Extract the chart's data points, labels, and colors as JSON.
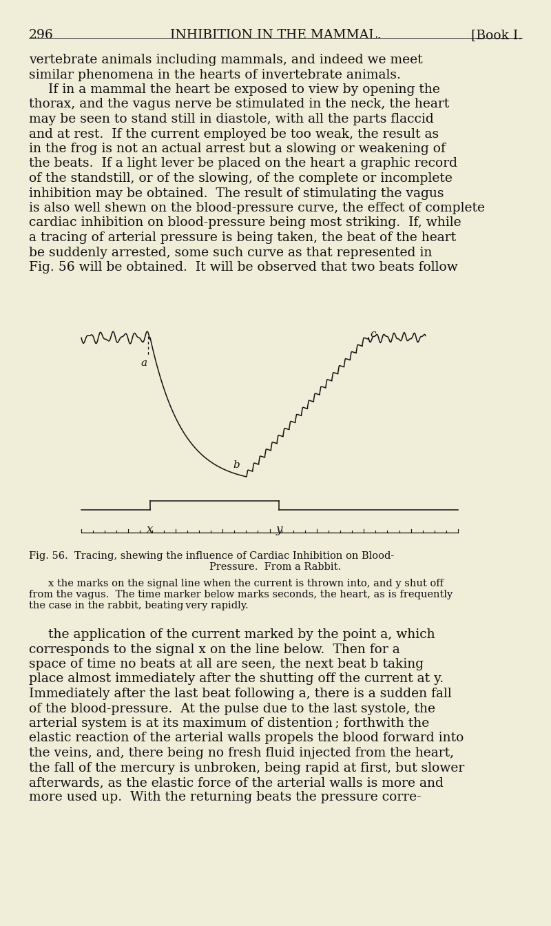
{
  "bg_color": "#f0edd8",
  "text_color": "#111111",
  "page_number": "296",
  "header_center": "INHIBITION IN THE MAMMAL.",
  "header_right": "[Book I.",
  "para1_lines": [
    "vertebrate animals including mammals, and indeed we meet",
    "similar phenomena in the hearts of invertebrate animals.",
    "    If in a mammal the heart be exposed to view by opening the",
    "thorax, and the vagus nerve be stimulated in the neck, the heart",
    "may be seen to stand still in diastole, with all the parts flaccid",
    "and at rest.  If the current employed be too weak, the result as",
    "in the frog is not an actual arrest but a slowing or weakening of",
    "the beats.  If a light lever be placed on the heart a graphic record",
    "of the standstill, or of the slowing, of the complete or incomplete",
    "inhibition may be obtained.  The result of stimulating the vagus",
    "is also well shewn on the blood-pressure curve, the effect of complete",
    "cardiac inhibition on blood-pressure being most striking.  If, while",
    "a tracing of arterial pressure is being taken, the beat of the heart",
    "be suddenly arrested, some such curve as that represented in",
    "Fig. 56 will be obtained.  It will be observed that two beats follow"
  ],
  "caption_line1": "Fig. 56.  Tracing, shewing the influence of Cardiac Inhibition on Blood-",
  "caption_line2": "Pressure.  From a Rabbit.",
  "small_line1": "x the marks on the signal line when the current is thrown into, and y shut off",
  "small_line2": "from the vagus.  The time marker below marks seconds, the heart, as is frequently",
  "small_line3": "the case in the rabbit, beating very rapidly.",
  "para2_lines": [
    "    the application of the current marked by the point a, which",
    "corresponds to the signal x on the line below.  Then for a",
    "space of time no beats at all are seen, the next beat b taking",
    "place almost immediately after the shutting off the current at y.",
    "Immediately after the last beat following a, there is a sudden fall",
    "of the blood-pressure.  At the pulse due to the last systole, the",
    "arterial system is at its maximum of distention ; forthwith the",
    "elastic reaction of the arterial walls propels the blood forward into",
    "the veins, and, there being no fresh fluid injected from the heart,",
    "the fall of the mercury is unbroken, being rapid at first, but slower",
    "afterwards, as the elastic force of the arterial walls is more and",
    "more used up.  With the returning beats the pressure corre-"
  ]
}
